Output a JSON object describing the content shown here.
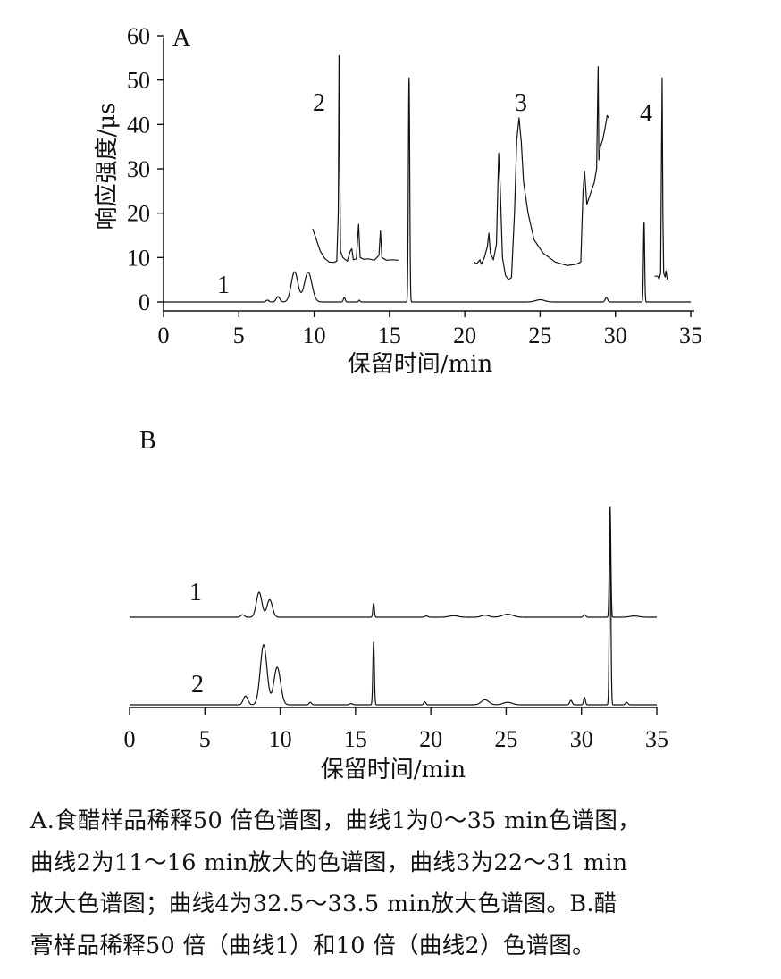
{
  "chart_data": [
    {
      "type": "line",
      "panel_label": "A",
      "xlabel": "保留时间/min",
      "ylabel": "响应强度/μs",
      "xlim": [
        0,
        35
      ],
      "ylim": [
        0,
        60
      ],
      "xticks": [
        "0",
        "5",
        "10",
        "15",
        "20",
        "25",
        "30",
        "35"
      ],
      "yticks": [
        "0",
        "10",
        "20",
        "30",
        "40",
        "50",
        "60"
      ],
      "series": [
        {
          "name": "1",
          "base": 0,
          "range": [
            0,
            35
          ],
          "peaks": [
            [
              6.9,
              0.4,
              0.1
            ],
            [
              7.6,
              1.2,
              0.12
            ],
            [
              8.7,
              6.8,
              0.22
            ],
            [
              9.6,
              6.7,
              0.25
            ],
            [
              12.0,
              1.0,
              0.06
            ],
            [
              13.0,
              0.4,
              0.05
            ],
            [
              16.3,
              50.5,
              0.045
            ],
            [
              25.0,
              0.5,
              0.3
            ],
            [
              29.4,
              1.0,
              0.08
            ],
            [
              31.9,
              18.0,
              0.04
            ]
          ]
        },
        {
          "name": "2",
          "points": [
            [
              9.9,
              16.5
            ],
            [
              10.1,
              14.5
            ],
            [
              10.4,
              11.5
            ],
            [
              10.7,
              9.8
            ],
            [
              11.0,
              9.0
            ],
            [
              11.3,
              8.9
            ],
            [
              11.5,
              9.2
            ],
            [
              11.6,
              20.0
            ],
            [
              11.65,
              55.5
            ],
            [
              11.7,
              30.0
            ],
            [
              11.75,
              11.5
            ],
            [
              11.9,
              10.0
            ],
            [
              12.2,
              9.2
            ],
            [
              12.4,
              11.5
            ],
            [
              12.5,
              12.0
            ],
            [
              12.6,
              9.5
            ],
            [
              12.8,
              9.7
            ],
            [
              12.95,
              17.5
            ],
            [
              13.05,
              10.0
            ],
            [
              13.3,
              9.6
            ],
            [
              13.6,
              9.7
            ],
            [
              14.0,
              9.4
            ],
            [
              14.3,
              10.5
            ],
            [
              14.4,
              16.0
            ],
            [
              14.5,
              10.0
            ],
            [
              14.8,
              9.4
            ],
            [
              15.2,
              9.5
            ],
            [
              15.6,
              9.4
            ]
          ]
        },
        {
          "name": "3",
          "points": [
            [
              20.6,
              9.0
            ],
            [
              20.8,
              8.6
            ],
            [
              21.0,
              9.5
            ],
            [
              21.1,
              8.5
            ],
            [
              21.3,
              10.0
            ],
            [
              21.5,
              12.5
            ],
            [
              21.6,
              15.5
            ],
            [
              21.7,
              11.0
            ],
            [
              21.9,
              9.5
            ],
            [
              22.1,
              13.0
            ],
            [
              22.25,
              33.5
            ],
            [
              22.35,
              26.0
            ],
            [
              22.5,
              10.0
            ],
            [
              22.7,
              6.0
            ],
            [
              22.9,
              5.0
            ],
            [
              23.1,
              5.5
            ],
            [
              23.3,
              20.0
            ],
            [
              23.45,
              36.5
            ],
            [
              23.6,
              41.5
            ],
            [
              23.75,
              36.0
            ],
            [
              23.9,
              27.0
            ],
            [
              24.2,
              20.0
            ],
            [
              24.6,
              14.0
            ],
            [
              25.2,
              11.0
            ],
            [
              26.0,
              9.0
            ],
            [
              26.8,
              8.2
            ],
            [
              27.4,
              8.5
            ],
            [
              27.7,
              9.0
            ],
            [
              27.85,
              25.0
            ],
            [
              27.95,
              29.5
            ],
            [
              28.1,
              22.0
            ],
            [
              28.3,
              24.0
            ],
            [
              28.6,
              27.0
            ],
            [
              28.75,
              30.0
            ],
            [
              28.85,
              53.0
            ],
            [
              28.9,
              32.0
            ],
            [
              29.0,
              35.0
            ],
            [
              29.15,
              36.5
            ],
            [
              29.3,
              39.0
            ],
            [
              29.45,
              42.0
            ],
            [
              29.55,
              41.5
            ]
          ]
        },
        {
          "name": "4",
          "points": [
            [
              32.6,
              5.8
            ],
            [
              32.8,
              5.8
            ],
            [
              32.9,
              5.2
            ],
            [
              33.0,
              6.5
            ],
            [
              33.05,
              30.0
            ],
            [
              33.1,
              50.5
            ],
            [
              33.15,
              20.0
            ],
            [
              33.2,
              6.5
            ],
            [
              33.3,
              5.6
            ],
            [
              33.35,
              7.0
            ],
            [
              33.45,
              5.0
            ],
            [
              33.55,
              4.8
            ]
          ]
        }
      ]
    },
    {
      "type": "line",
      "panel_label": "B",
      "xlabel": "保留时间/min",
      "xlim": [
        0,
        35
      ],
      "xticks": [
        "0",
        "5",
        "10",
        "15",
        "20",
        "25",
        "30",
        "35"
      ],
      "series": [
        {
          "name": "1",
          "range": [
            0,
            35
          ],
          "peaks": [
            [
              7.5,
              0.1,
              0.12
            ],
            [
              8.6,
              1.0,
              0.18
            ],
            [
              9.3,
              0.7,
              0.18
            ],
            [
              16.2,
              0.55,
              0.05
            ],
            [
              19.7,
              0.05,
              0.1
            ],
            [
              21.5,
              0.06,
              0.3
            ],
            [
              23.6,
              0.08,
              0.25
            ],
            [
              25.1,
              0.12,
              0.35
            ],
            [
              30.2,
              0.1,
              0.08
            ],
            [
              31.9,
              4.4,
              0.05
            ],
            [
              33.5,
              0.05,
              0.3
            ]
          ]
        },
        {
          "name": "2",
          "range": [
            0,
            35
          ],
          "peaks": [
            [
              7.7,
              0.35,
              0.15
            ],
            [
              8.9,
              2.4,
              0.22
            ],
            [
              9.8,
              1.5,
              0.22
            ],
            [
              12.0,
              0.1,
              0.08
            ],
            [
              14.7,
              0.05,
              0.1
            ],
            [
              16.2,
              2.5,
              0.05
            ],
            [
              19.6,
              0.12,
              0.07
            ],
            [
              23.6,
              0.2,
              0.25
            ],
            [
              25.1,
              0.1,
              0.3
            ],
            [
              29.3,
              0.18,
              0.08
            ],
            [
              30.2,
              0.3,
              0.06
            ],
            [
              31.9,
              7.4,
              0.05
            ],
            [
              33.0,
              0.1,
              0.08
            ]
          ]
        }
      ]
    }
  ],
  "caption": {
    "lines": [
      "A.食醋样品稀释50 倍色谱图，曲线1为0～35 min色谱图，",
      "曲线2为11～16 min放大的色谱图，曲线3为22～31 min",
      "放大色谱图；曲线4为32.5～33.5 min放大色谱图。B.醋",
      "膏样品稀释50 倍（曲线1）和10 倍（曲线2）色谱图。"
    ]
  }
}
